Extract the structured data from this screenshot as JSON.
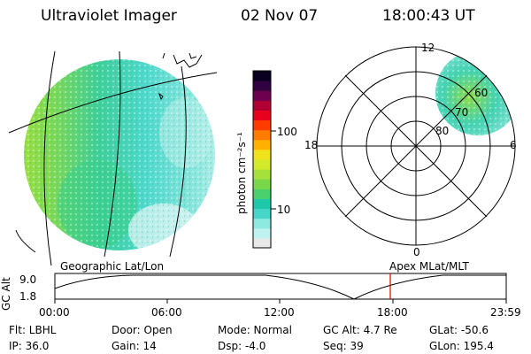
{
  "header": {
    "title": "Ultraviolet Imager",
    "date": "02 Nov 07",
    "time": "18:00:43 UT"
  },
  "colorbar": {
    "label": "photon cm⁻²s⁻¹",
    "ticks": [
      "100",
      "10"
    ],
    "colors": [
      "#e8e8e8",
      "#bff3f2",
      "#8fe9e3",
      "#45d6c9",
      "#1ec8aa",
      "#4bd06e",
      "#78d84a",
      "#a6e03a",
      "#d2ea2a",
      "#f1e21e",
      "#ffb000",
      "#ff7a00",
      "#ff3c00",
      "#e8001c",
      "#b00034",
      "#6e0050",
      "#300040",
      "#0a0020"
    ]
  },
  "polar_plot": {
    "ring_labels": [
      "80",
      "70",
      "60"
    ],
    "mlt_labels": {
      "top": "12",
      "left": "18",
      "right": "6",
      "bottom": "0"
    }
  },
  "timeline": {
    "geo_label": "Geographic Lat/Lon",
    "apex_label": "Apex MLat/MLT",
    "axis_title": "GC Alt",
    "y_ticks": [
      "9.0",
      "1.8"
    ],
    "x_ticks": [
      "00:00",
      "06:00",
      "12:00",
      "18:00",
      "23:59"
    ],
    "cursor_color": "#e00000"
  },
  "info": {
    "filter": "Flt: LBHL",
    "door": "Door: Open",
    "mode": "Mode: Normal",
    "gc_alt": "GC Alt: 4.7 Re",
    "glat": "GLat: -50.6",
    "ip": "IP: 36.0",
    "gain": "Gain: 14",
    "dsp": "Dsp:    -4.0",
    "seq": "Seq: 39",
    "glon": "GLon: 195.4"
  }
}
